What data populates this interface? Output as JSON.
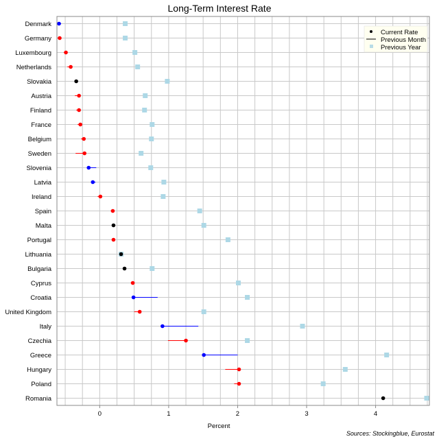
{
  "chart_data": {
    "type": "scatter",
    "title": "Long-Term Interest Rate",
    "xlabel": "Percent",
    "ylabel": "",
    "xlim": [
      -0.62,
      4.78
    ],
    "xticks": [
      0,
      1,
      2,
      3,
      4
    ],
    "grid": true,
    "legend_position": "top-right",
    "legend": [
      "Current Rate",
      "Previous Month",
      "Previous Year"
    ],
    "source": "Sources: Stockingblue, Eurostat",
    "colors": {
      "increase": "#ff0000",
      "decrease": "#0000ff",
      "unchanged": "#000000",
      "previous_year": "#add8e6",
      "grid": "#c8c8c8"
    },
    "rows": [
      {
        "country": "Denmark",
        "current": -0.59,
        "previous_month": -0.56,
        "previous_year": 0.37
      },
      {
        "country": "Germany",
        "current": -0.58,
        "previous_month": -0.61,
        "previous_year": 0.37
      },
      {
        "country": "Luxembourg",
        "current": -0.49,
        "previous_month": -0.52,
        "previous_year": 0.51
      },
      {
        "country": "Netherlands",
        "current": -0.42,
        "previous_month": -0.47,
        "previous_year": 0.55
      },
      {
        "country": "Slovakia",
        "current": -0.34,
        "previous_month": -0.34,
        "previous_year": 0.98
      },
      {
        "country": "Austria",
        "current": -0.3,
        "previous_month": -0.36,
        "previous_year": 0.66
      },
      {
        "country": "Finland",
        "current": -0.3,
        "previous_month": -0.34,
        "previous_year": 0.65
      },
      {
        "country": "France",
        "current": -0.28,
        "previous_month": -0.32,
        "previous_year": 0.76
      },
      {
        "country": "Belgium",
        "current": -0.23,
        "previous_month": -0.27,
        "previous_year": 0.75
      },
      {
        "country": "Sweden",
        "current": -0.22,
        "previous_month": -0.35,
        "previous_year": 0.6
      },
      {
        "country": "Slovenia",
        "current": -0.16,
        "previous_month": -0.05,
        "previous_year": 0.74
      },
      {
        "country": "Latvia",
        "current": -0.1,
        "previous_month": -0.06,
        "previous_year": 0.93
      },
      {
        "country": "Ireland",
        "current": 0.01,
        "previous_month": -0.03,
        "previous_year": 0.92
      },
      {
        "country": "Spain",
        "current": 0.19,
        "previous_month": 0.16,
        "previous_year": 1.45
      },
      {
        "country": "Malta",
        "current": 0.2,
        "previous_month": 0.2,
        "previous_year": 1.51
      },
      {
        "country": "Portugal",
        "current": 0.2,
        "previous_month": 0.19,
        "previous_year": 1.86
      },
      {
        "country": "Lithuania",
        "current": 0.31,
        "previous_month": 0.31,
        "previous_year": 0.31
      },
      {
        "country": "Bulgaria",
        "current": 0.36,
        "previous_month": 0.36,
        "previous_year": 0.76
      },
      {
        "country": "Cyprus",
        "current": 0.48,
        "previous_month": 0.45,
        "previous_year": 2.01
      },
      {
        "country": "Croatia",
        "current": 0.49,
        "previous_month": 0.84,
        "previous_year": 2.14
      },
      {
        "country": "United Kingdom",
        "current": 0.58,
        "previous_month": 0.5,
        "previous_year": 1.51
      },
      {
        "country": "Italy",
        "current": 0.91,
        "previous_month": 1.43,
        "previous_year": 2.94
      },
      {
        "country": "Czechia",
        "current": 1.25,
        "previous_month": 0.99,
        "previous_year": 2.14
      },
      {
        "country": "Greece",
        "current": 1.51,
        "previous_month": 2.0,
        "previous_year": 4.16
      },
      {
        "country": "Hungary",
        "current": 2.02,
        "previous_month": 1.82,
        "previous_year": 3.56
      },
      {
        "country": "Poland",
        "current": 2.02,
        "previous_month": 1.95,
        "previous_year": 3.24
      },
      {
        "country": "Romania",
        "current": 4.11,
        "previous_month": 4.11,
        "previous_year": 4.74
      }
    ]
  }
}
